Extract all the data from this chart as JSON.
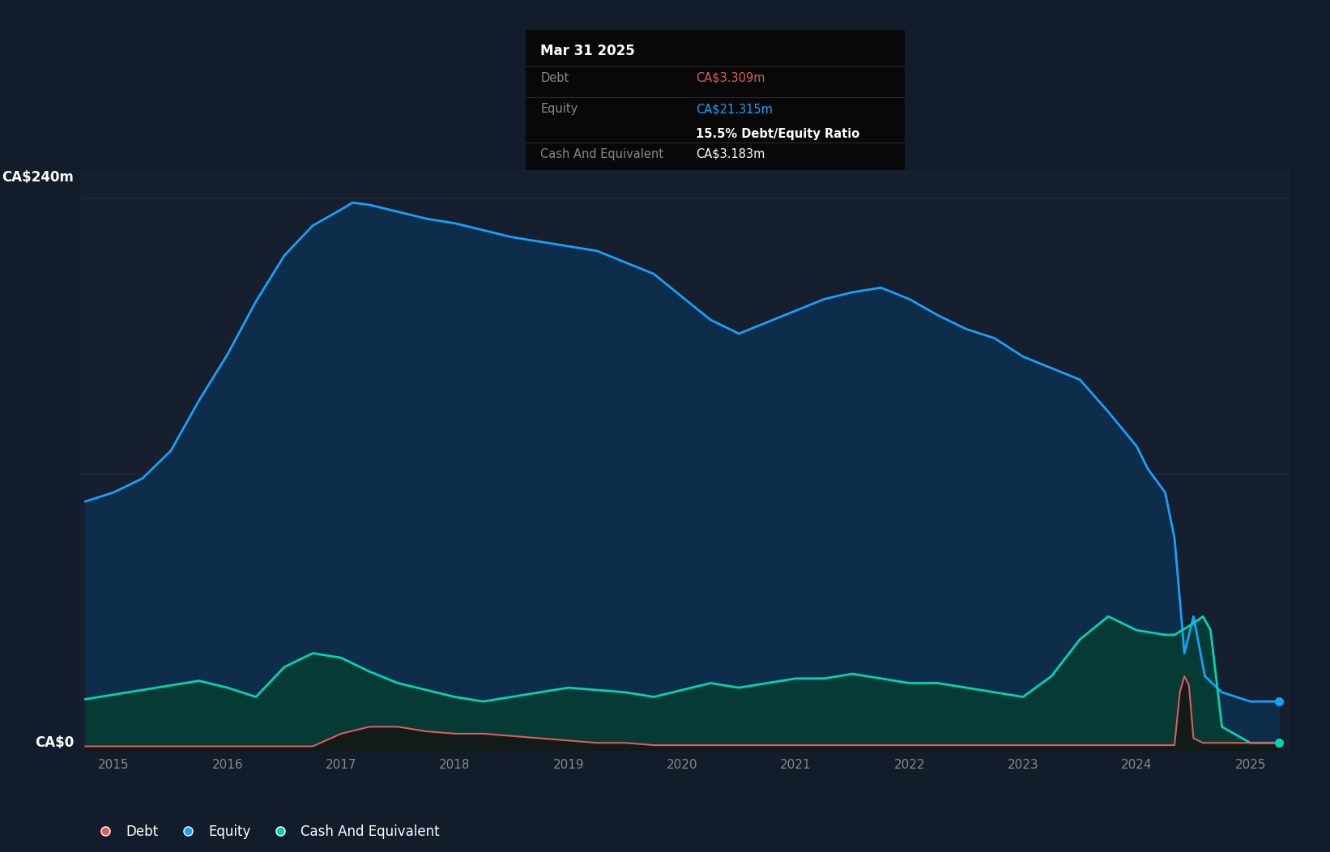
{
  "background_color": "#131c2b",
  "plot_bg_color": "#151f2e",
  "grid_color": "#253040",
  "colors": {
    "equity_line": "#18a0fb",
    "equity_fill": "#0e2d4a",
    "debt_line": "#e05c5c",
    "debt_fill": "#2a0f0f",
    "cash_line": "#00d4b4",
    "cash_fill": "#063a35"
  },
  "ylabel_top": "CA$240m",
  "ylabel_zero": "CA$0",
  "ylim": [
    0,
    240
  ],
  "xlim": [
    2014.7,
    2025.35
  ],
  "x_years": [
    2015,
    2016,
    2017,
    2018,
    2019,
    2020,
    2021,
    2022,
    2023,
    2024,
    2025
  ],
  "legend": [
    {
      "label": "Debt",
      "color": "#e05c5c"
    },
    {
      "label": "Equity",
      "color": "#18a0fb"
    },
    {
      "label": "Cash And Equivalent",
      "color": "#00d4b4"
    }
  ],
  "tooltip": {
    "title": "Mar 31 2025",
    "debt_label": "Debt",
    "debt_value": "CA$3.309m",
    "equity_label": "Equity",
    "equity_value": "CA$21.315m",
    "ratio_text": "15.5% Debt/Equity Ratio",
    "cash_label": "Cash And Equivalent",
    "cash_value": "CA$3.183m",
    "debt_color": "#e05c5c",
    "equity_color": "#18a0fb",
    "text_color": "#888888",
    "bg_color": "#080808"
  },
  "equity_data": {
    "dates": [
      2014.75,
      2015.0,
      2015.25,
      2015.5,
      2015.75,
      2016.0,
      2016.25,
      2016.5,
      2016.75,
      2017.0,
      2017.1,
      2017.25,
      2017.5,
      2017.75,
      2018.0,
      2018.25,
      2018.5,
      2018.75,
      2019.0,
      2019.25,
      2019.5,
      2019.75,
      2020.0,
      2020.25,
      2020.5,
      2020.75,
      2021.0,
      2021.25,
      2021.5,
      2021.75,
      2022.0,
      2022.25,
      2022.5,
      2022.75,
      2023.0,
      2023.25,
      2023.5,
      2023.75,
      2024.0,
      2024.1,
      2024.25,
      2024.333,
      2024.42,
      2024.5,
      2024.6,
      2024.75,
      2025.0,
      2025.25
    ],
    "values": [
      108,
      112,
      118,
      130,
      152,
      172,
      195,
      215,
      228,
      235,
      238,
      237,
      234,
      231,
      229,
      226,
      223,
      221,
      219,
      217,
      212,
      207,
      197,
      187,
      181,
      186,
      191,
      196,
      199,
      201,
      196,
      189,
      183,
      179,
      171,
      166,
      161,
      147,
      132,
      122,
      112,
      92,
      42,
      58,
      32,
      25,
      21,
      21
    ]
  },
  "debt_data": {
    "dates": [
      2014.75,
      2015.0,
      2015.25,
      2015.5,
      2015.75,
      2016.0,
      2016.25,
      2016.5,
      2016.75,
      2017.0,
      2017.25,
      2017.5,
      2017.75,
      2018.0,
      2018.25,
      2018.5,
      2018.75,
      2019.0,
      2019.25,
      2019.5,
      2019.75,
      2020.0,
      2020.25,
      2020.5,
      2020.75,
      2021.0,
      2021.25,
      2021.5,
      2021.75,
      2022.0,
      2022.25,
      2022.5,
      2022.75,
      2023.0,
      2023.25,
      2023.5,
      2023.75,
      2024.0,
      2024.1,
      2024.25,
      2024.333,
      2024.38,
      2024.42,
      2024.46,
      2024.5,
      2024.583,
      2024.75,
      2025.0,
      2025.25
    ],
    "values": [
      1.5,
      1.5,
      1.5,
      1.5,
      1.5,
      1.5,
      1.5,
      1.5,
      1.5,
      7,
      10,
      10,
      8,
      7,
      7,
      6,
      5,
      4,
      3,
      3,
      2,
      2,
      2,
      2,
      2,
      2,
      2,
      2,
      2,
      2,
      2,
      2,
      2,
      2,
      2,
      2,
      2,
      2,
      2,
      2,
      2,
      25,
      32,
      28,
      5,
      3,
      3,
      3,
      3
    ]
  },
  "cash_data": {
    "dates": [
      2014.75,
      2015.0,
      2015.25,
      2015.5,
      2015.75,
      2016.0,
      2016.25,
      2016.5,
      2016.75,
      2017.0,
      2017.25,
      2017.5,
      2017.75,
      2018.0,
      2018.25,
      2018.5,
      2018.75,
      2019.0,
      2019.25,
      2019.5,
      2019.75,
      2020.0,
      2020.25,
      2020.5,
      2020.75,
      2021.0,
      2021.25,
      2021.5,
      2021.75,
      2022.0,
      2022.25,
      2022.5,
      2022.75,
      2023.0,
      2023.25,
      2023.5,
      2023.75,
      2024.0,
      2024.25,
      2024.333,
      2024.5,
      2024.583,
      2024.65,
      2024.75,
      2025.0,
      2025.25
    ],
    "values": [
      22,
      24,
      26,
      28,
      30,
      27,
      23,
      36,
      42,
      40,
      34,
      29,
      26,
      23,
      21,
      23,
      25,
      27,
      26,
      25,
      23,
      26,
      29,
      27,
      29,
      31,
      31,
      33,
      31,
      29,
      29,
      27,
      25,
      23,
      32,
      48,
      58,
      52,
      50,
      50,
      55,
      58,
      52,
      10,
      3,
      3
    ]
  }
}
